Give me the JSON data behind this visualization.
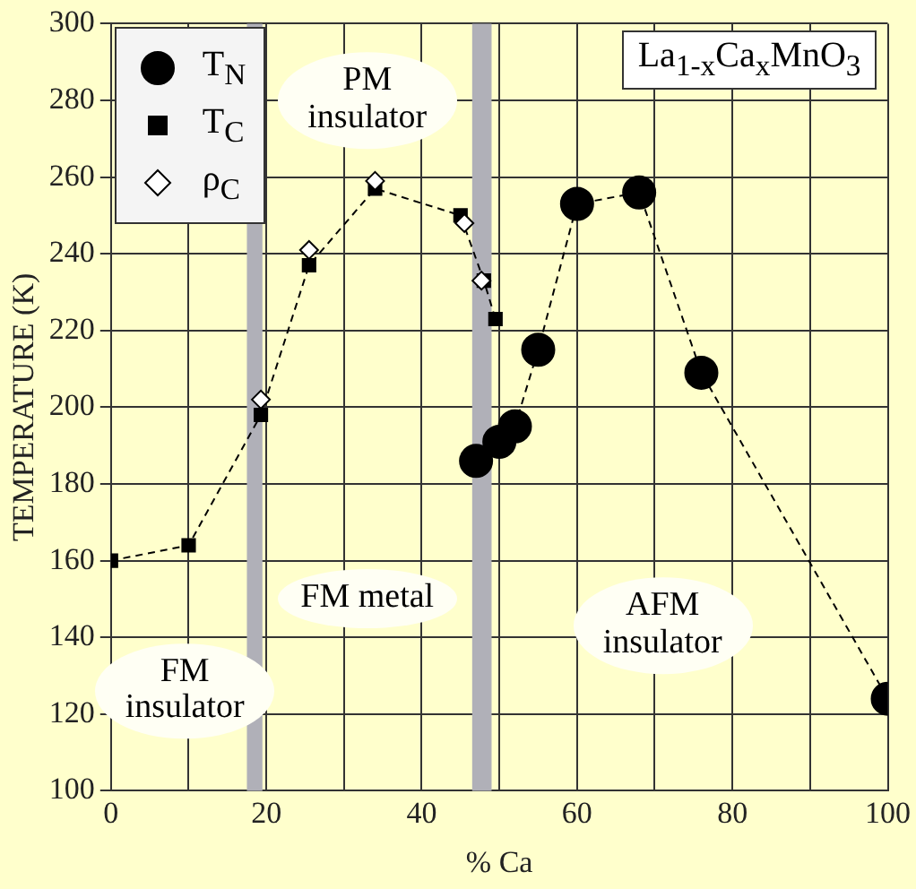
{
  "chart_data": {
    "type": "line",
    "title": "La$_{1-x}$Ca$_{x}$MnO$_{3}$",
    "xlabel": "% Ca",
    "ylabel": "TEMPERATURE (K)",
    "xlim": [
      0,
      100
    ],
    "xticks": [
      0,
      {
        "value": 10,
        "label": null
      },
      20,
      {
        "value": 30,
        "label": null
      },
      40,
      {
        "value": 50,
        "label": null
      },
      60,
      {
        "value": 70,
        "label": null
      },
      80,
      {
        "value": 90,
        "label": null
      },
      100
    ],
    "ylim": [
      100,
      300
    ],
    "yticks": [
      100,
      120,
      140,
      160,
      180,
      200,
      220,
      240,
      260,
      280,
      300
    ],
    "grid": true,
    "legend": "top left",
    "line_style": "dashed",
    "series": [
      {
        "name": "T$_{N}$",
        "marker": "circle",
        "color": "#000000",
        "x": [
          47,
          50,
          52,
          55,
          60,
          68,
          76,
          100
        ],
        "values": [
          186,
          191,
          195,
          215,
          253,
          256,
          209,
          124
        ]
      },
      {
        "name": "T$_{C}$",
        "marker": "square",
        "color": "#000000",
        "x": [
          0,
          10,
          19.3,
          25.5,
          34,
          45,
          48,
          49.5
        ],
        "values": [
          160,
          164,
          198,
          237,
          257,
          250,
          233,
          223
        ]
      },
      {
        "name": "ρ$_{C}$",
        "type": "scatter",
        "marker": "diamond",
        "color": "#000000",
        "x": [
          19.3,
          25.5,
          34,
          45.5,
          47.7
        ],
        "values": [
          202,
          241,
          259,
          248,
          233
        ]
      }
    ],
    "bands": [
      {
        "axis": "x",
        "from": 17.5,
        "to": 19.5,
        "color": "#b0b0b8"
      },
      {
        "axis": "x",
        "from": 46.5,
        "to": 49,
        "color": "#b0b0b8"
      }
    ],
    "annotations": [
      "PM insulator",
      "FM insulator",
      "FM metal",
      "AFM insulator"
    ]
  }
}
